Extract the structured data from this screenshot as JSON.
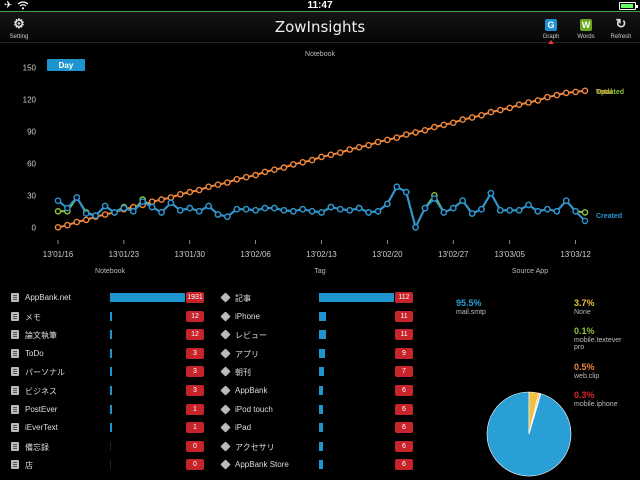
{
  "status_bar": {
    "time": "11:47"
  },
  "nav": {
    "title": "ZowInsights",
    "setting_label": "Setting",
    "graph_label": "Graph",
    "graph_letter": "G",
    "words_label": "Words",
    "words_letter": "W",
    "refresh_label": "Refresh"
  },
  "chart_data": {
    "type": "line",
    "title": "Notebook",
    "period_button": "Day",
    "x": [
      "13'01/16",
      "13'01/17",
      "13'01/18",
      "13'01/19",
      "13'01/20",
      "13'01/21",
      "13'01/22",
      "13'01/23",
      "13'01/24",
      "13'01/25",
      "13'01/26",
      "13'01/27",
      "13'01/28",
      "13'01/29",
      "13'01/30",
      "13'01/31",
      "13'02/01",
      "13'02/02",
      "13'02/03",
      "13'02/04",
      "13'02/05",
      "13'02/06",
      "13'02/07",
      "13'02/08",
      "13'02/09",
      "13'02/10",
      "13'02/11",
      "13'02/12",
      "13'02/13",
      "13'02/14",
      "13'02/15",
      "13'02/16",
      "13'02/17",
      "13'02/18",
      "13'02/19",
      "13'02/20",
      "13'02/21",
      "13'02/22",
      "13'02/23",
      "13'02/24",
      "13'02/25",
      "13'02/26",
      "13'02/27",
      "13'02/28",
      "13'03/01",
      "13'03/02",
      "13'03/03",
      "13'03/04",
      "13'03/05",
      "13'03/06",
      "13'03/07",
      "13'03/08",
      "13'03/09",
      "13'03/10",
      "13'03/11",
      "13'03/12",
      "13'03/13"
    ],
    "xticks": [
      "13'01/16",
      "13'01/23",
      "13'01/30",
      "13'02/06",
      "13'02/13",
      "13'02/20",
      "13'02/27",
      "13'03/05",
      "13'03/12"
    ],
    "yticks": [
      0,
      30,
      60,
      90,
      120,
      150
    ],
    "ylim": [
      -10,
      155
    ],
    "series": [
      {
        "name": "Total",
        "color": "#f0883c",
        "values": [
          0,
          2,
          5,
          7,
          10,
          12,
          14,
          17,
          19,
          21,
          24,
          26,
          28,
          31,
          33,
          35,
          38,
          40,
          42,
          45,
          47,
          49,
          52,
          54,
          56,
          59,
          61,
          63,
          66,
          68,
          70,
          73,
          75,
          77,
          80,
          82,
          84,
          87,
          89,
          91,
          94,
          96,
          98,
          101,
          103,
          105,
          108,
          110,
          112,
          115,
          117,
          119,
          122,
          124,
          126,
          127,
          128
        ]
      },
      {
        "name": "Updated",
        "color": "#8dc63f",
        "values": [
          15,
          15,
          28,
          14,
          11,
          20,
          14,
          19,
          15,
          26,
          19,
          14,
          23,
          16,
          18,
          15,
          20,
          12,
          10,
          17,
          17,
          16,
          18,
          18,
          16,
          15,
          17,
          15,
          14,
          19,
          17,
          16,
          18,
          14,
          15,
          22,
          38,
          33,
          0,
          18,
          30,
          14,
          18,
          25,
          13,
          17,
          32,
          16,
          16,
          16,
          21,
          15,
          17,
          15,
          25,
          15,
          14
        ]
      },
      {
        "name": "Created",
        "color": "#2a94d6",
        "values": [
          25,
          18,
          28,
          13,
          11,
          20,
          14,
          18,
          15,
          24,
          19,
          14,
          23,
          16,
          18,
          15,
          20,
          12,
          10,
          17,
          17,
          16,
          18,
          18,
          16,
          15,
          17,
          15,
          14,
          19,
          17,
          16,
          18,
          14,
          15,
          22,
          38,
          33,
          0,
          18,
          27,
          14,
          18,
          25,
          13,
          17,
          32,
          16,
          16,
          16,
          21,
          15,
          17,
          15,
          25,
          15,
          6
        ]
      }
    ],
    "end_labels": [
      "Total",
      "Updated",
      "Created"
    ]
  },
  "notebook": {
    "title": "Notebook",
    "items": [
      {
        "name": "AppBank.net",
        "count": "1931",
        "value": 1931
      },
      {
        "name": "メモ",
        "count": "12",
        "value": 12
      },
      {
        "name": "論文執筆",
        "count": "12",
        "value": 12
      },
      {
        "name": "ToDo",
        "count": "3",
        "value": 3
      },
      {
        "name": "パーソナル",
        "count": "3",
        "value": 3
      },
      {
        "name": "ビジネス",
        "count": "3",
        "value": 3
      },
      {
        "name": "PostEver",
        "count": "1",
        "value": 1
      },
      {
        "name": "iEverText",
        "count": "1",
        "value": 1
      },
      {
        "name": "備忘録",
        "count": "0",
        "value": 0
      },
      {
        "name": "店",
        "count": "0",
        "value": 0
      }
    ]
  },
  "tag": {
    "title": "Tag",
    "items": [
      {
        "name": "記事",
        "count": "112",
        "value": 112
      },
      {
        "name": "iPhone",
        "count": "11",
        "value": 11
      },
      {
        "name": "レビュー",
        "count": "11",
        "value": 11
      },
      {
        "name": "アプリ",
        "count": "9",
        "value": 9
      },
      {
        "name": "朝刊",
        "count": "7",
        "value": 7
      },
      {
        "name": "AppBank",
        "count": "6",
        "value": 6
      },
      {
        "name": "iPod touch",
        "count": "6",
        "value": 6
      },
      {
        "name": "iPad",
        "count": "6",
        "value": 6
      },
      {
        "name": "アクセサリ",
        "count": "6",
        "value": 6
      },
      {
        "name": "AppBank Store",
        "count": "6",
        "value": 6
      }
    ]
  },
  "source": {
    "title": "Source App",
    "items": [
      {
        "pct": "95.5%",
        "name": "mail.smtp",
        "value": 95.5,
        "color": "#2a9fd6"
      },
      {
        "pct": "3.7%",
        "name": "None",
        "value": 3.7,
        "color": "#f0c040"
      },
      {
        "pct": "0.1%",
        "name": "mobile.textever pro",
        "value": 0.1,
        "color": "#8dc63f"
      },
      {
        "pct": "0.5%",
        "name": "web.clip",
        "value": 0.5,
        "color": "#f0883c"
      },
      {
        "pct": "0.3%",
        "name": "mobile.iphone",
        "value": 0.3,
        "color": "#d8262e"
      }
    ]
  }
}
